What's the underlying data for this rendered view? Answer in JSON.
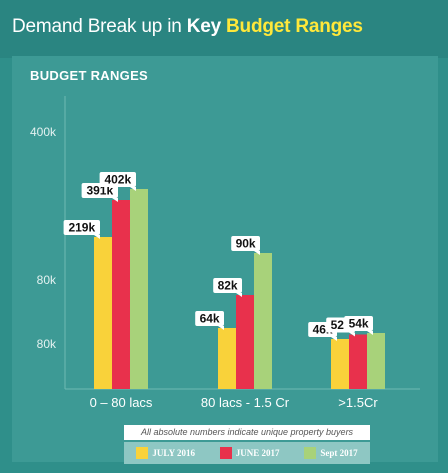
{
  "header": {
    "title_prefix": "Demand Break up in ",
    "title_strong": "Key ",
    "title_accent": "Budget Ranges"
  },
  "panel": {
    "title": "BUDGET RANGES",
    "footnote": "All absolute numbers indicate unique property buyers"
  },
  "colors": {
    "background": "#2f8f8a",
    "panel": "#3d9a95",
    "accent_text": "#ffe83a",
    "july_2016": "#f9d23a",
    "june_2017": "#e8314c",
    "sept_2017": "#a8d27a"
  },
  "chart_data": {
    "type": "bar",
    "title": "BUDGET RANGES",
    "categories": [
      "0 – 80 lacs",
      "80 lacs - 1.5 Cr",
      ">1.5Cr"
    ],
    "y_tick_labels": [
      "400k",
      "80k",
      "80k"
    ],
    "series": [
      {
        "name": "JULY 2016",
        "values": [
          219,
          64,
          46
        ],
        "labels": [
          "219k",
          "64k",
          "46k"
        ]
      },
      {
        "name": "JUNE 2017",
        "values": [
          391,
          82,
          52
        ],
        "labels": [
          "391k",
          "82k",
          "52k"
        ]
      },
      {
        "name": "Sept 2017",
        "values": [
          402,
          90,
          54
        ],
        "labels": [
          "402k",
          "90k",
          "54k"
        ]
      }
    ],
    "value_unit": "k",
    "axis_scale": "broken (non-linear)",
    "legend_position": "bottom",
    "grid": false
  }
}
